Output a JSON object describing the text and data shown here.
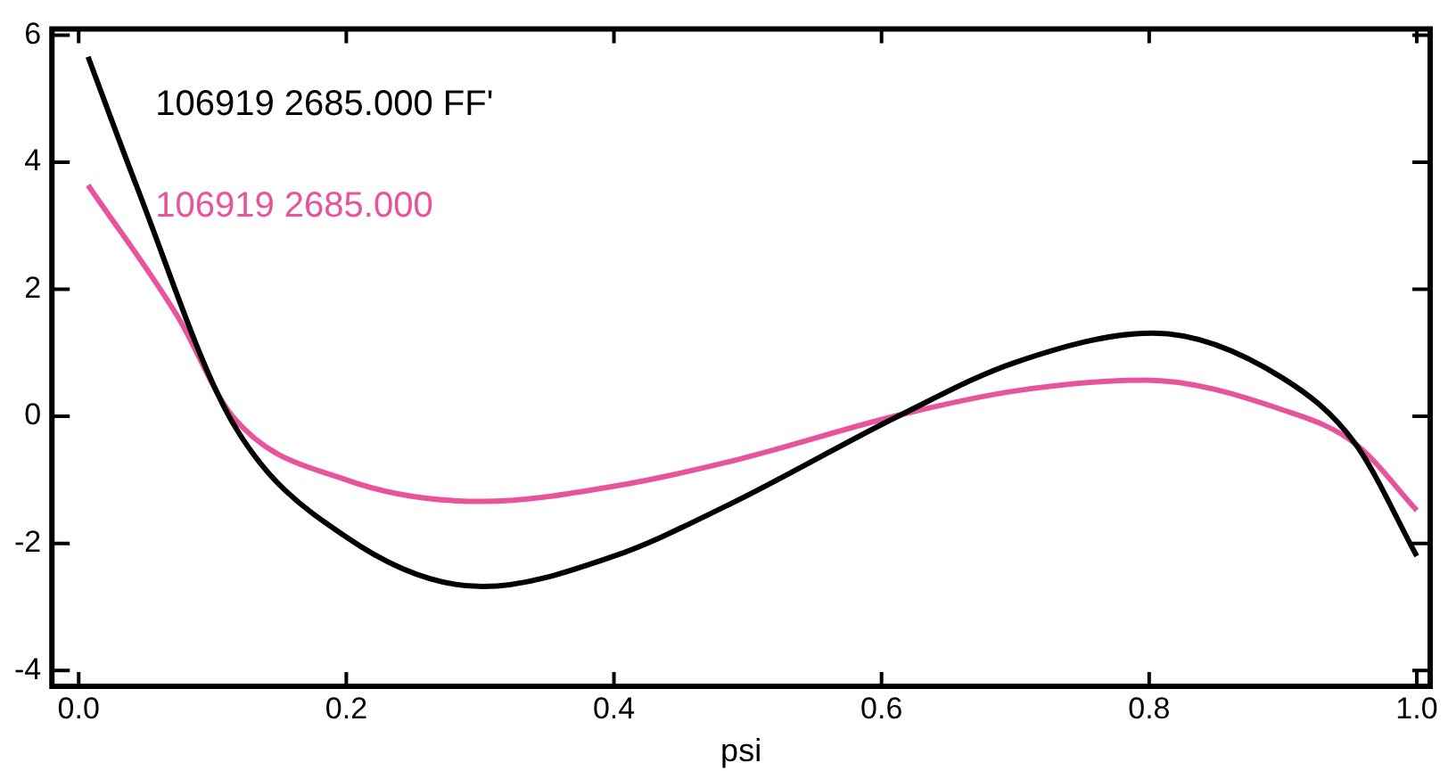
{
  "chart_data": {
    "type": "line",
    "xlabel": "psi",
    "xlim": [
      -0.02,
      1.01
    ],
    "ylim": [
      -4.25,
      6.1
    ],
    "xticks": [
      {
        "value": 0,
        "label": "0.0"
      },
      0.2,
      0.4,
      0.6,
      0.8,
      {
        "value": 1,
        "label": "1.0"
      }
    ],
    "yticks": [
      -4,
      -2,
      0,
      2,
      4,
      6
    ],
    "grid": false,
    "legend": "top left",
    "marker": "none",
    "line_style": "solid",
    "series": [
      {
        "name": "106919 2685.000 FF'",
        "color": "#000000",
        "x": [
          0.007,
          0.043,
          0.114,
          0.2,
          0.302,
          0.4,
          0.485,
          0.615,
          0.7,
          0.803,
          0.9,
          0.954,
          1.0
        ],
        "values": [
          5.66,
          3.64,
          -0.06,
          -1.9,
          -2.68,
          -2.2,
          -1.4,
          0.03,
          0.85,
          1.31,
          0.6,
          -0.43,
          -2.2
        ]
      },
      {
        "name": "106919 2685.000",
        "color": "#e8549c",
        "x": [
          0.007,
          0.074,
          0.115,
          0.2,
          0.302,
          0.4,
          0.485,
          0.615,
          0.7,
          0.797,
          0.9,
          0.954,
          1.0
        ],
        "values": [
          3.64,
          1.57,
          0,
          -1.0,
          -1.34,
          -1.1,
          -0.72,
          0.03,
          0.4,
          0.57,
          0.1,
          -0.43,
          -1.48
        ]
      }
    ]
  }
}
